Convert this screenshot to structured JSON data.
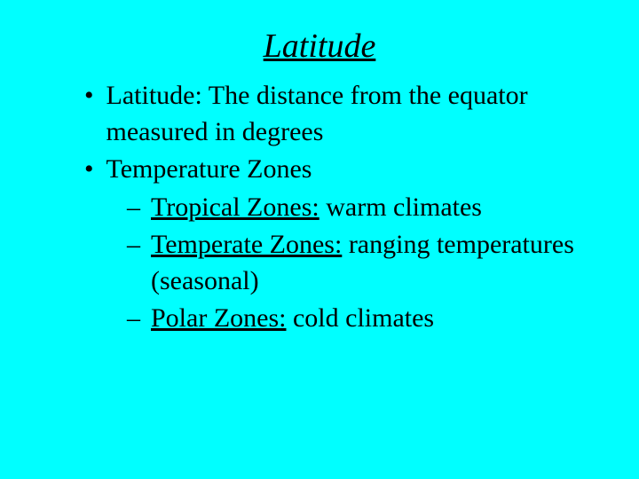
{
  "background_color": "#00ffff",
  "text_color": "#000000",
  "font_family": "Times New Roman",
  "title": {
    "text": "Latitude",
    "fontsize": 38,
    "italic": true,
    "underline": true
  },
  "bullets": [
    {
      "text": "Latitude: The distance from the equator measured in degrees"
    },
    {
      "text": "Temperature Zones",
      "subitems": [
        {
          "underlined": "Tropical Zones:",
          "rest": " warm climates"
        },
        {
          "underlined": "Temperate Zones:",
          "rest": " ranging temperatures (seasonal)"
        },
        {
          "underlined": "Polar Zones:",
          "rest": " cold climates"
        }
      ]
    }
  ],
  "body_fontsize": 30
}
